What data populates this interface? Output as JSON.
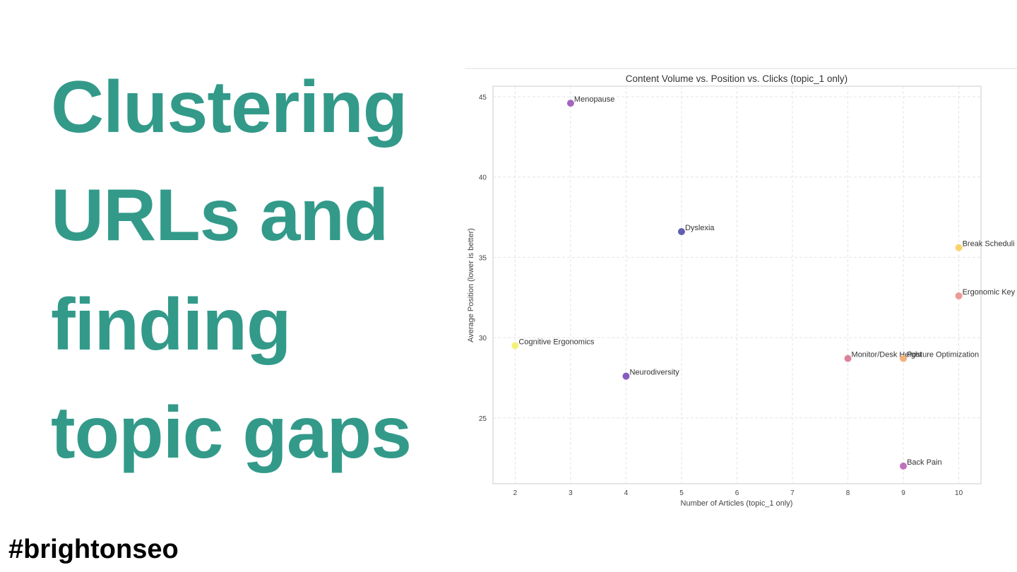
{
  "slide": {
    "title_lines": [
      "Clustering",
      "URLs and",
      "finding",
      "topic gaps"
    ],
    "hashtag": "#brightonseo"
  },
  "chart_data": {
    "type": "scatter",
    "title": "Content Volume vs. Position vs. Clicks (topic_1 only)",
    "xlabel": "Number of Articles (topic_1 only)",
    "ylabel": "Average Position (lower is better)",
    "labels": [
      "Menopause",
      "Dyslexia",
      "Break Scheduli",
      "Ergonomic Key",
      "Cognitive Ergonomics",
      "Neurodiversity",
      "Monitor/Desk Height",
      "Posture Optimization",
      "Back Pain"
    ],
    "x": [
      3,
      5,
      10,
      10,
      2,
      4,
      8,
      9,
      9
    ],
    "values": [
      44.6,
      36.6,
      35.6,
      32.6,
      29.5,
      27.6,
      28.7,
      28.7,
      22.0
    ],
    "colors": [
      "#9b55b8",
      "#4f4ea8",
      "#f8cf5e",
      "#e8918a",
      "#f3ef6a",
      "#7b49bd",
      "#d8768f",
      "#f2aa6c",
      "#b962b4"
    ],
    "xlim": [
      1.6,
      10.4
    ],
    "ylim": [
      20.9,
      45.66
    ],
    "xticks": [
      2,
      3,
      4,
      5,
      6,
      7,
      8,
      9,
      10
    ],
    "yticks": [
      25,
      30,
      35,
      40,
      45
    ],
    "grid": true
  }
}
